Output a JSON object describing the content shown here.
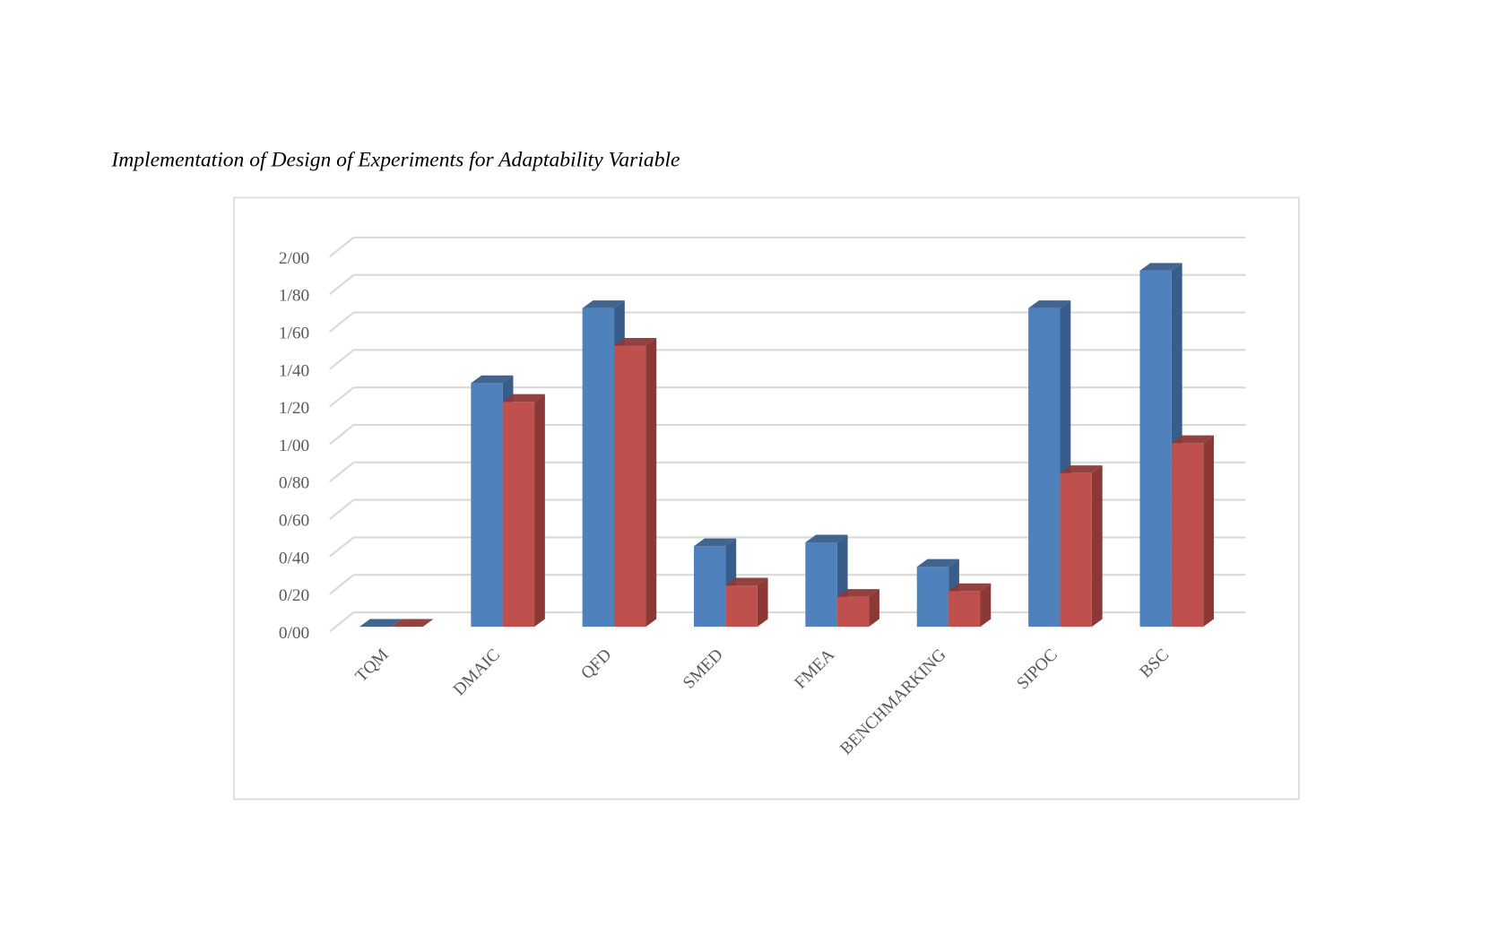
{
  "chart_data": {
    "type": "bar",
    "title": "Implementation of Design of Experiments for Adaptability Variable",
    "xlabel": "",
    "ylabel": "",
    "categories": [
      "TQM",
      "DMAIC",
      "QFD",
      "SMED",
      "FMEA",
      "BENCHMARKING",
      "SIPOC",
      "BSC"
    ],
    "series": [
      {
        "color": "#4F81BD",
        "side": "#385D8A",
        "values": [
          0,
          1.3,
          1.7,
          0.43,
          0.45,
          0.32,
          1.7,
          1.9
        ]
      },
      {
        "color": "#C0504D",
        "side": "#8C3836",
        "values": [
          0,
          1.2,
          1.5,
          0.22,
          0.16,
          0.19,
          0.82,
          0.98
        ]
      }
    ],
    "ylim": [
      0,
      2.0
    ],
    "yticks": [
      "0/00",
      "0/20",
      "0/40",
      "0/60",
      "0/80",
      "1/00",
      "1/20",
      "1/40",
      "1/60",
      "1/80",
      "2/00"
    ],
    "grid": true,
    "legend": "none",
    "style": "3d-clustered-column"
  }
}
